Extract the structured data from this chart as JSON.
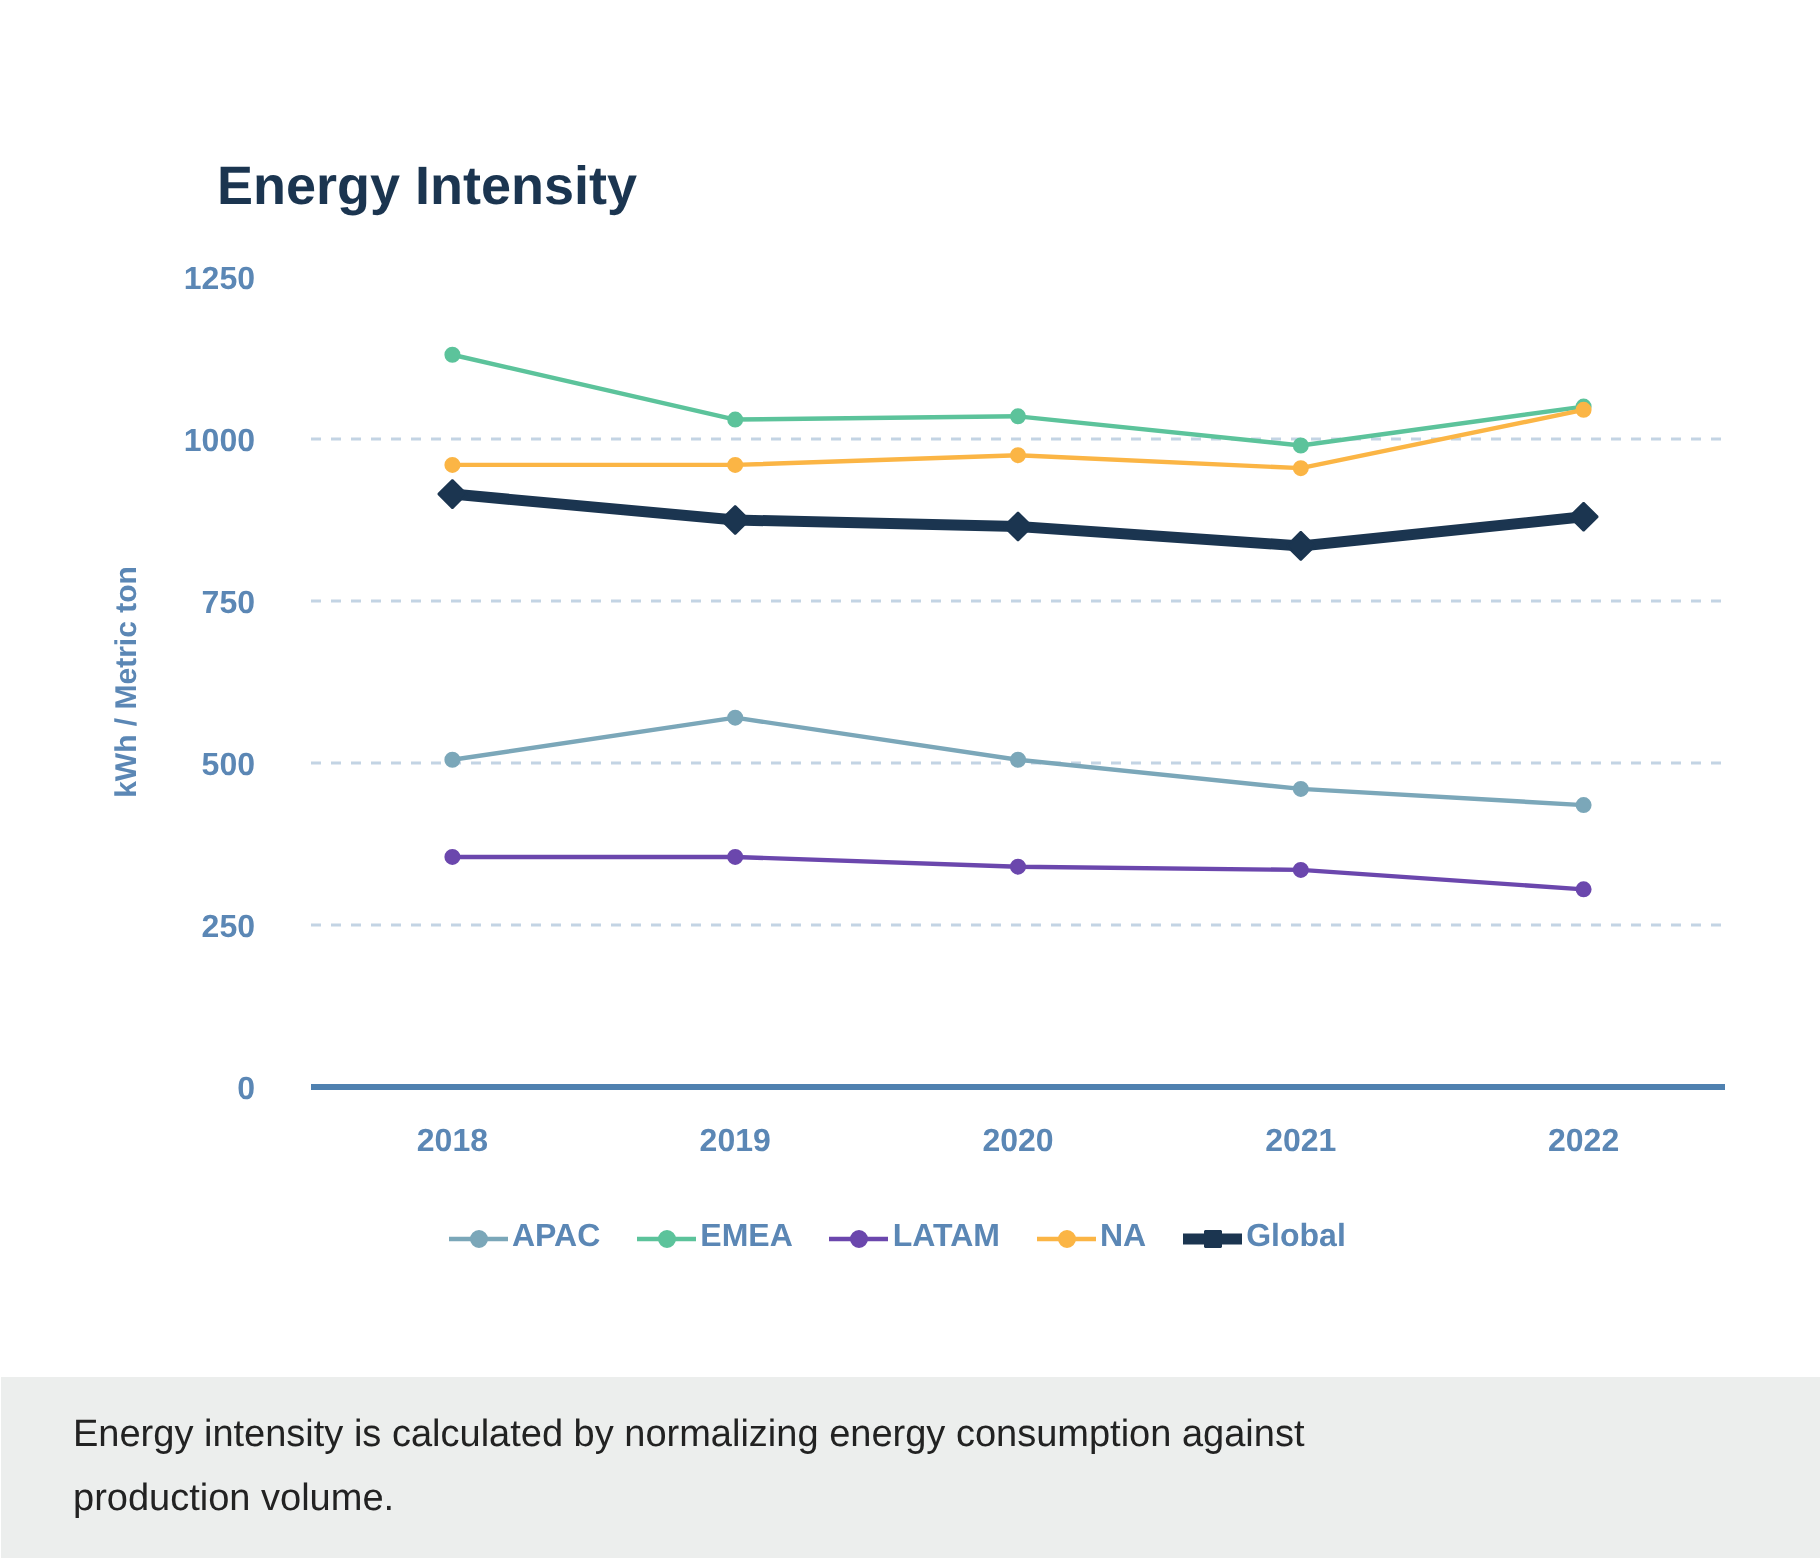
{
  "chart_data": {
    "type": "line",
    "title": "Energy Intensity",
    "ylabel": "kWh / Metric ton",
    "categories": [
      "2018",
      "2019",
      "2020",
      "2021",
      "2022"
    ],
    "series": [
      {
        "name": "APAC",
        "color": "#7ba7b9",
        "marker": "circle",
        "values": [
          505,
          570,
          505,
          460,
          435
        ]
      },
      {
        "name": "EMEA",
        "color": "#5cc39b",
        "marker": "circle",
        "values": [
          1130,
          1030,
          1035,
          990,
          1050
        ]
      },
      {
        "name": "LATAM",
        "color": "#6b47ad",
        "marker": "circle",
        "values": [
          355,
          355,
          340,
          335,
          305
        ]
      },
      {
        "name": "NA",
        "color": "#fbb545",
        "marker": "circle",
        "values": [
          960,
          960,
          975,
          955,
          1045
        ]
      },
      {
        "name": "Global",
        "color": "#1b3550",
        "marker": "diamond",
        "values": [
          915,
          875,
          865,
          835,
          880
        ]
      }
    ],
    "ylim": [
      0,
      1250
    ],
    "yticks": [
      0,
      250,
      500,
      750,
      1000,
      1250
    ],
    "grid": "y",
    "legend": "bottom",
    "line_style": "solid",
    "annotations": [
      "Energy intensity is calculated by normalizing energy consumption against production volume."
    ]
  }
}
